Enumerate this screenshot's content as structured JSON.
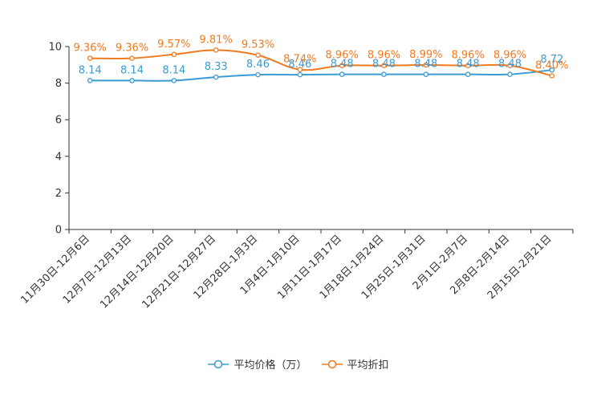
{
  "chart_data": {
    "type": "line",
    "categories": [
      "11月30日-12月6日",
      "12月7日-12月13日",
      "12月14日-12月20日",
      "12月21日-12月27日",
      "12月28日-1月3日",
      "1月4日-1月10日",
      "1月11日-1月17日",
      "1月18日-1月24日",
      "1月25日-1月31日",
      "2月1日-2月7日",
      "2月8日-2月14日",
      "2月15日-2月21日"
    ],
    "series": [
      {
        "name": "平均价格（万）",
        "color": "#3a9bd0",
        "values": [
          8.14,
          8.14,
          8.14,
          8.33,
          8.46,
          8.46,
          8.48,
          8.48,
          8.48,
          8.48,
          8.48,
          8.72
        ],
        "labels": [
          "8.14",
          "8.14",
          "8.14",
          "8.33",
          "8.46",
          "8.46",
          "8.48",
          "8.48",
          "8.48",
          "8.48",
          "8.48",
          "8.72"
        ]
      },
      {
        "name": "平均折扣",
        "color": "#f07a1e",
        "values": [
          9.36,
          9.36,
          9.57,
          9.81,
          9.53,
          8.74,
          8.96,
          8.96,
          8.99,
          8.96,
          8.96,
          8.4
        ],
        "labels": [
          "9.36%",
          "9.36%",
          "9.57%",
          "9.81%",
          "9.53%",
          "8.74%",
          "8.96%",
          "8.96%",
          "8.99%",
          "8.96%",
          "8.96%",
          "8.40%"
        ]
      }
    ],
    "y_ticks": [
      "0",
      "2",
      "4",
      "6",
      "8",
      "10"
    ],
    "ylim": [
      0,
      10
    ],
    "title": "",
    "xlabel": "",
    "ylabel": "",
    "grid": false,
    "legend_position": "bottom"
  }
}
